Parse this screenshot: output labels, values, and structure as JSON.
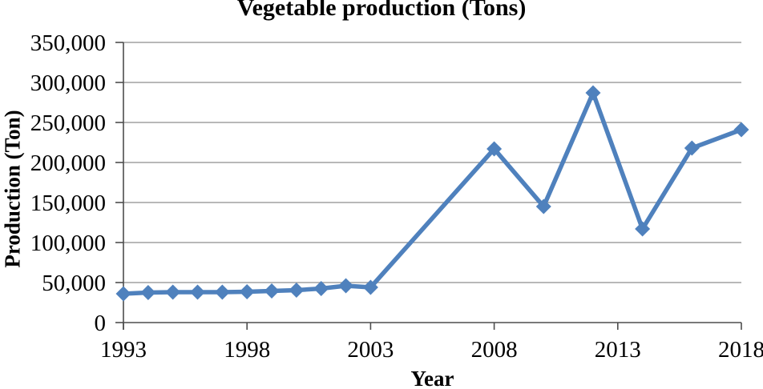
{
  "chart_data": {
    "type": "line",
    "title": "Vegetable production (Tons)",
    "xlabel": "Year",
    "ylabel": "Production (Ton)",
    "x": [
      1993,
      1994,
      1995,
      1996,
      1997,
      1998,
      1999,
      2000,
      2001,
      2002,
      2003,
      2008,
      2010,
      2012,
      2014,
      2016,
      2018
    ],
    "y": [
      36000,
      37500,
      38000,
      38000,
      38000,
      38500,
      39500,
      40500,
      42500,
      46000,
      44000,
      217000,
      145000,
      287000,
      117000,
      218000,
      241000
    ],
    "xlim": [
      1993,
      2018
    ],
    "ylim": [
      0,
      350000
    ],
    "x_ticks": [
      1993,
      1998,
      2003,
      2008,
      2013,
      2018
    ],
    "x_tick_labels": [
      "1993",
      "1998",
      "2003",
      "2008",
      "2013",
      "2018"
    ],
    "y_ticks": [
      0,
      50000,
      100000,
      150000,
      200000,
      250000,
      300000,
      350000
    ],
    "y_tick_labels": [
      "0",
      "50,000",
      "100,000",
      "150,000",
      "200,000",
      "250,000",
      "300,000",
      "350,000"
    ],
    "grid": "horizontal",
    "legend": "none",
    "marker": "diamond",
    "series_color": "#4F81BD",
    "gridline_color": "#A0A0A0",
    "axis_color": "#4D4D4D",
    "text_color": "#000000"
  }
}
